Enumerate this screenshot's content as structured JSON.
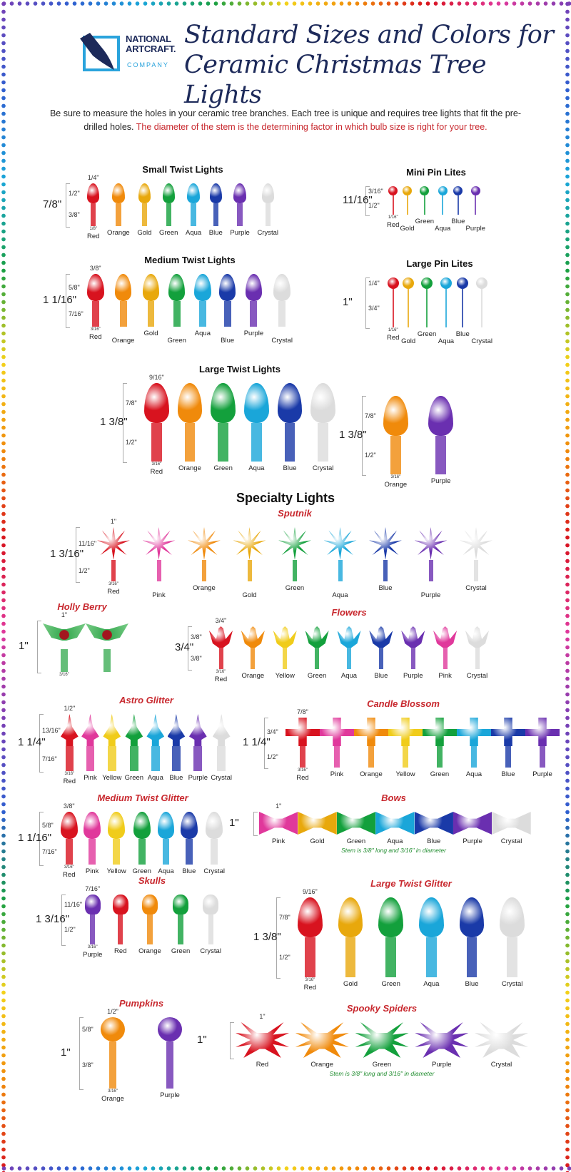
{
  "brand": {
    "line1": "NATIONAL",
    "line2": "ARTCRAFT.",
    "line3": "COMPANY"
  },
  "title": {
    "line1": "Standard Sizes and Colors for",
    "line2": "Ceramic Christmas Tree Lights"
  },
  "intro": {
    "text": "Be sure to measure the holes in your ceramic tree branches. Each tree is unique and requires tree lights that fit the pre-drilled holes.",
    "highlight": "The diameter of the stem is the determining factor in which bulb size is right for your tree."
  },
  "specialty_heading": "Specialty Lights",
  "colors": {
    "Red": "#d8131f",
    "Orange": "#f08a0b",
    "Gold": "#e8a80c",
    "Yellow": "#f0cc1a",
    "Green": "#13a03c",
    "Aqua": "#1aa6d9",
    "Blue": "#1a3aa8",
    "Purple": "#6a2fb0",
    "Crystal": "#dcdcdc",
    "Pink": "#e0389b",
    "title_navy": "#1d2a5a",
    "accent_red": "#c8282e",
    "note_green": "#1f8c2e"
  },
  "groups": {
    "small_twist": {
      "title": "Small Twist Lights",
      "shape": "twist",
      "dims": {
        "total": "7/8\"",
        "top": "1/2\"",
        "bottom": "3/8\"",
        "width": "1/4\"",
        "stem": "1/8\""
      },
      "items": [
        "Red",
        "Orange",
        "Gold",
        "Green",
        "Aqua",
        "Blue",
        "Purple",
        "Crystal"
      ]
    },
    "mini_pin": {
      "title": "Mini Pin Lites",
      "shape": "pin",
      "dims": {
        "total": "11/16\"",
        "top": "3/16\"",
        "bottom": "1/2\"",
        "stem": "1/16\""
      },
      "items": [
        "Red",
        "Gold",
        "Green",
        "Aqua",
        "Blue",
        "Purple"
      ]
    },
    "medium_twist": {
      "title": "Medium Twist Lights",
      "shape": "twist",
      "dims": {
        "total": "1 1/16\"",
        "top": "5/8\"",
        "bottom": "7/16\"",
        "width": "3/8\"",
        "stem": "3/16\""
      },
      "items": [
        "Red",
        "Orange",
        "Gold",
        "Green",
        "Aqua",
        "Blue",
        "Purple",
        "Crystal"
      ]
    },
    "large_pin": {
      "title": "Large Pin Lites",
      "shape": "pin",
      "dims": {
        "total": "1\"",
        "top": "1/4\"",
        "bottom": "3/4\"",
        "stem": "1/16\""
      },
      "items": [
        "Red",
        "Gold",
        "Green",
        "Aqua",
        "Blue",
        "Crystal"
      ]
    },
    "large_twist": {
      "title": "Large Twist Lights",
      "shape": "twist",
      "dims": {
        "total": "1 3/8\"",
        "top": "7/8\"",
        "bottom": "1/2\"",
        "width": "9/16\"",
        "stem": "3/16\""
      },
      "items": [
        "Red",
        "Orange",
        "Green",
        "Aqua",
        "Blue",
        "Crystal"
      ]
    },
    "large_twist_extra": {
      "title": "",
      "shape": "twist",
      "dims": {
        "total": "1 3/8\"",
        "top": "7/8\"",
        "bottom": "1/2\"",
        "stem": "3/16\""
      },
      "items": [
        "Orange",
        "Purple"
      ]
    },
    "sputnik": {
      "title": "Sputnik",
      "shape": "sputnik",
      "dims": {
        "total": "1 3/16\"",
        "top": "11/16\"",
        "bottom": "1/2\"",
        "width": "1\"",
        "stem": "3/16\""
      },
      "items": [
        "Red",
        "Pink",
        "Orange",
        "Gold",
        "Green",
        "Aqua",
        "Blue",
        "Purple",
        "Crystal"
      ]
    },
    "holly_berry": {
      "title": "Holly Berry",
      "shape": "holly",
      "dims": {
        "total": "1\"",
        "width": "1\"",
        "stem": "3/16\""
      },
      "items": [
        "",
        ""
      ]
    },
    "flowers": {
      "title": "Flowers",
      "shape": "flower",
      "dims": {
        "total": "3/4\"",
        "top": "3/8\"",
        "bottom": "3/8\"",
        "width": "3/4\"",
        "stem": "3/16\""
      },
      "items": [
        "Red",
        "Orange",
        "Yellow",
        "Green",
        "Aqua",
        "Blue",
        "Purple",
        "Pink",
        "Crystal"
      ]
    },
    "astro_glitter": {
      "title": "Astro Glitter",
      "shape": "astro",
      "dims": {
        "total": "1 1/4\"",
        "top": "13/16\"",
        "bottom": "7/16\"",
        "width": "1/2\"",
        "stem": "3/16\""
      },
      "items": [
        "Red",
        "Pink",
        "Yellow",
        "Green",
        "Aqua",
        "Blue",
        "Purple",
        "Crystal"
      ]
    },
    "candle_blossom": {
      "title": "Candle Blossom",
      "shape": "candle",
      "dims": {
        "total": "1 1/4\"",
        "top": "3/4\"",
        "bottom": "1/2\"",
        "width": "7/8\"",
        "stem": "3/16\""
      },
      "items": [
        "Red",
        "Pink",
        "Orange",
        "Yellow",
        "Green",
        "Aqua",
        "Blue",
        "Purple"
      ]
    },
    "medium_twist_glitter": {
      "title": "Medium Twist Glitter",
      "shape": "twist",
      "dims": {
        "total": "1 1/16\"",
        "top": "5/8\"",
        "bottom": "7/16\"",
        "width": "3/8\"",
        "stem": "3/16\""
      },
      "items": [
        "Red",
        "Pink",
        "Yellow",
        "Green",
        "Aqua",
        "Blue",
        "Crystal"
      ]
    },
    "bows": {
      "title": "Bows",
      "shape": "bow",
      "dims": {
        "total": "1\"",
        "width": "1\""
      },
      "items": [
        "Pink",
        "Gold",
        "Green",
        "Aqua",
        "Blue",
        "Purple",
        "Crystal"
      ],
      "note": "Stem is 3/8\" long and 3/16\" in diameter"
    },
    "skulls": {
      "title": "Skulls",
      "shape": "skull",
      "dims": {
        "total": "1 3/16\"",
        "top": "11/16\"",
        "bottom": "1/2\"",
        "width": "7/16\"",
        "stem": "3/16\""
      },
      "items": [
        "Purple",
        "Red",
        "Orange",
        "Green",
        "Crystal"
      ]
    },
    "large_twist_glitter": {
      "title": "Large Twist Glitter",
      "shape": "twist",
      "dims": {
        "total": "1 3/8\"",
        "top": "7/8\"",
        "bottom": "1/2\"",
        "width": "9/16\"",
        "stem": "3/16\""
      },
      "items": [
        "Red",
        "Gold",
        "Green",
        "Aqua",
        "Blue",
        "Crystal"
      ]
    },
    "pumpkins": {
      "title": "Pumpkins",
      "shape": "pumpkin",
      "dims": {
        "total": "1\"",
        "top": "5/8\"",
        "bottom": "3/8\"",
        "width": "1/2\"",
        "stem": "3/16\""
      },
      "items": [
        "Orange",
        "Purple"
      ]
    },
    "spooky_spiders": {
      "title": "Spooky Spiders",
      "shape": "spider",
      "dims": {
        "total": "1\"",
        "width": "1\""
      },
      "items": [
        "Red",
        "Orange",
        "Green",
        "Purple",
        "Crystal"
      ],
      "note": "Stem is 3/8\" long and 3/16\" in diameter"
    }
  }
}
